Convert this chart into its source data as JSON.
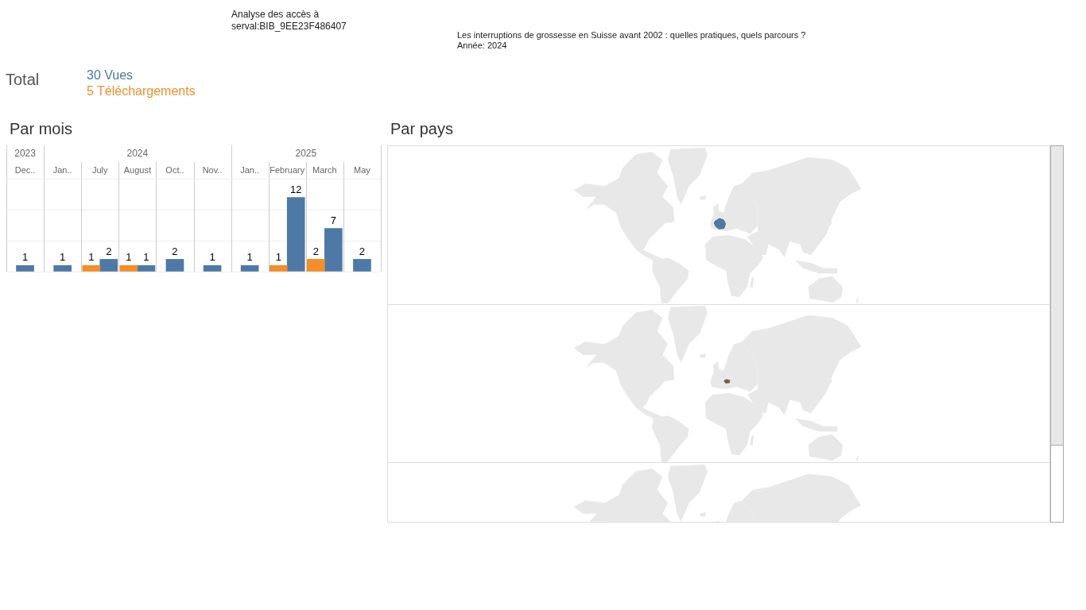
{
  "chart_data": [
    {
      "type": "other",
      "title": "Analyse des accès à serval:BIB_9EE23F486407",
      "subtitle": "Les interruptions de grossesse en Suisse avant 2002 : quelles pratiques, quels parcours ?",
      "annotations": [
        "Année: 2024"
      ]
    },
    {
      "type": "other",
      "title": "Total",
      "categories": [
        "30 Vues",
        "5 Téléchargements"
      ],
      "colors": [
        "#4e79a7",
        "#f28e2b"
      ]
    },
    {
      "type": "bar",
      "title": "Par mois",
      "categories": [
        "Dec..",
        "Jan..",
        "July",
        "August",
        "Oct..",
        "Nov..",
        "Jan..",
        "February",
        "March",
        "May"
      ],
      "series": [
        {
          "color": "#f28e2b",
          "values": [
            null,
            null,
            1,
            1,
            null,
            null,
            null,
            1,
            2,
            null
          ]
        },
        {
          "color": "#4e79a7",
          "values": [
            1,
            1,
            2,
            1,
            2,
            1,
            1,
            12,
            7,
            2
          ]
        }
      ],
      "ylim": [
        0,
        15
      ],
      "yticks": [
        {
          "value": 0,
          "label": null
        },
        {
          "value": 5,
          "label": null
        },
        {
          "value": 10,
          "label": null
        }
      ],
      "grid": true,
      "tick_labels": "x",
      "data_labels": true,
      "annotations": [
        "2023",
        "2024",
        "2025"
      ]
    },
    {
      "type": "other",
      "title": "Par pays"
    }
  ]
}
